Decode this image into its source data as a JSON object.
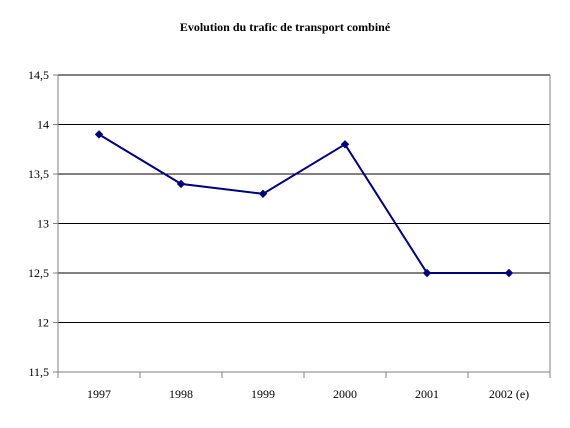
{
  "chart_data": {
    "type": "line",
    "title": "Evolution du trafic de transport combiné",
    "xlabel": "",
    "ylabel": "",
    "categories": [
      "1997",
      "1998",
      "1999",
      "2000",
      "2001",
      "2002 (e)"
    ],
    "series": [
      {
        "values": [
          13.9,
          13.4,
          13.3,
          13.8,
          12.5,
          12.5
        ]
      }
    ],
    "ylim": [
      11.5,
      14.5
    ],
    "yticks": [
      "11,5",
      "12",
      "12,5",
      "13",
      "13,5",
      "14",
      "14,5"
    ],
    "grid": true,
    "legend": "none",
    "colors": {
      "line": "#000080",
      "marker": "#000080",
      "grid": "#000000",
      "axis": "#808080"
    }
  }
}
